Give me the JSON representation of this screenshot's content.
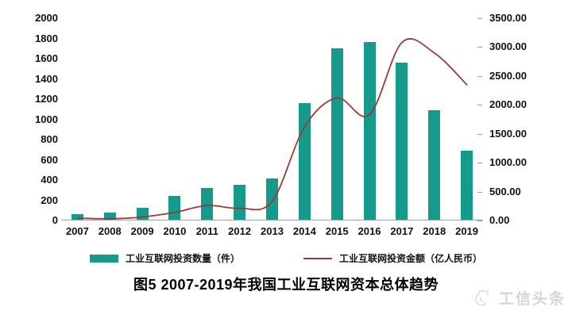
{
  "chart_data": {
    "type": "bar+line",
    "title": "图5 2007-2019年我国工业互联网资本总体趋势",
    "categories": [
      "2007",
      "2008",
      "2009",
      "2010",
      "2011",
      "2012",
      "2013",
      "2014",
      "2015",
      "2016",
      "2017",
      "2018",
      "2019"
    ],
    "series": [
      {
        "name": "工业互联网投资数量（件）",
        "type": "bar",
        "axis": "left",
        "color": "#169a8c",
        "values": [
          60,
          75,
          125,
          245,
          320,
          350,
          415,
          1160,
          1700,
          1765,
          1560,
          1090,
          690
        ]
      },
      {
        "name": "工业互联网投资金额（亿人民币）",
        "type": "line",
        "axis": "right",
        "color": "#9a3a38",
        "values": [
          40,
          30,
          60,
          140,
          260,
          210,
          330,
          1620,
          2120,
          1830,
          3080,
          2900,
          2350
        ]
      }
    ],
    "left_axis": {
      "min": 0,
      "max": 2000,
      "step": 200,
      "ticks": [
        "0",
        "200",
        "400",
        "600",
        "800",
        "1000",
        "1200",
        "1400",
        "1600",
        "1800",
        "2000"
      ]
    },
    "right_axis": {
      "min": 0,
      "max": 3500,
      "step": 500,
      "ticks": [
        "0.00",
        "500.00",
        "1000.00",
        "1500.00",
        "2000.00",
        "2500.00",
        "3000.00",
        "3500.00"
      ]
    },
    "grid": false,
    "legend_position": "bottom"
  },
  "watermark": {
    "text": "工信头条"
  }
}
